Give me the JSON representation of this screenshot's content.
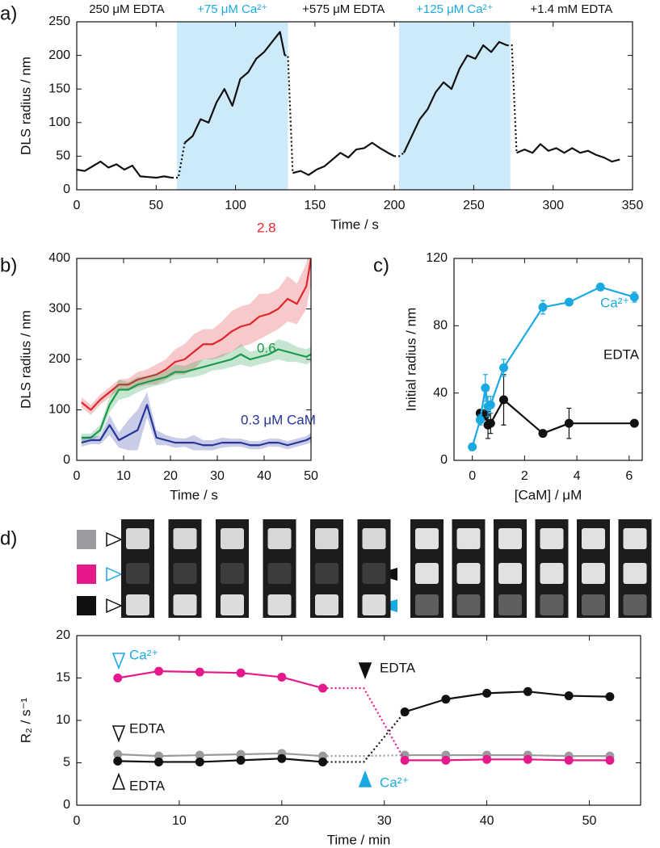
{
  "chart_data": [
    {
      "type": "line",
      "panel_label": "a)",
      "x_label": "Time / s",
      "y_label": "DLS radius / nm",
      "xlim": [
        0,
        350
      ],
      "ylim": [
        0,
        250
      ],
      "xticks": [
        0,
        50,
        100,
        150,
        200,
        250,
        300,
        350
      ],
      "yticks": [
        0,
        50,
        100,
        150,
        200,
        250
      ],
      "shaded_regions": [
        [
          63,
          133
        ],
        [
          203,
          273
        ]
      ],
      "shade_color": "#cdeafa",
      "annotations": [
        {
          "text": "250 μM EDTA",
          "color": "#111111"
        },
        {
          "text": "+75 μM Ca²⁺",
          "color": "#1ba9e1"
        },
        {
          "text": "+575 μM EDTA",
          "color": "#111111"
        },
        {
          "text": "+125 μM Ca²⁺",
          "color": "#1ba9e1"
        },
        {
          "text": "+1.4 mM EDTA",
          "color": "#111111"
        }
      ],
      "series": [
        {
          "color": "#111111",
          "x": [
            0,
            5,
            10,
            15,
            20,
            25,
            30,
            35,
            40,
            45,
            50,
            55,
            60,
            64,
            68,
            73,
            78,
            83,
            88,
            93,
            98,
            103,
            108,
            113,
            118,
            123,
            128,
            131,
            133,
            136,
            141,
            146,
            151,
            156,
            161,
            166,
            171,
            176,
            181,
            186,
            191,
            196,
            200,
            203,
            206,
            211,
            216,
            221,
            226,
            231,
            236,
            241,
            246,
            251,
            256,
            261,
            266,
            271,
            274,
            277,
            282,
            287,
            292,
            297,
            302,
            307,
            312,
            317,
            322,
            327,
            332,
            337,
            342
          ],
          "values": [
            30,
            28,
            35,
            42,
            33,
            38,
            30,
            36,
            20,
            19,
            18,
            20,
            18,
            null,
            70,
            80,
            105,
            100,
            130,
            150,
            125,
            165,
            175,
            195,
            205,
            220,
            235,
            200,
            null,
            25,
            28,
            22,
            30,
            35,
            45,
            55,
            48,
            60,
            62,
            70,
            62,
            55,
            50,
            null,
            55,
            80,
            105,
            120,
            145,
            160,
            150,
            180,
            200,
            195,
            215,
            205,
            220,
            215,
            null,
            55,
            60,
            55,
            68,
            58,
            62,
            55,
            62,
            55,
            58,
            52,
            48,
            42,
            45
          ]
        }
      ]
    },
    {
      "type": "line",
      "panel_label": "b)",
      "x_label": "Time / s",
      "y_label": "DLS radius / nm",
      "band": true,
      "xlim": [
        0,
        50
      ],
      "ylim": [
        0,
        400
      ],
      "xticks": [
        0,
        10,
        20,
        30,
        40,
        50
      ],
      "yticks": [
        0,
        100,
        200,
        300,
        400
      ],
      "series": [
        {
          "name": "2.8",
          "color": "#e0262c",
          "x": [
            1,
            3,
            5,
            7,
            9,
            11,
            13,
            15,
            17,
            19,
            21,
            23,
            25,
            27,
            29,
            31,
            33,
            35,
            37,
            39,
            41,
            43,
            45,
            47,
            49,
            50
          ],
          "values": [
            115,
            100,
            120,
            135,
            150,
            150,
            160,
            165,
            170,
            180,
            195,
            200,
            215,
            230,
            230,
            240,
            255,
            265,
            270,
            285,
            290,
            300,
            320,
            310,
            345,
            400
          ],
          "errors": [
            10,
            10,
            10,
            10,
            10,
            12,
            15,
            15,
            20,
            20,
            25,
            30,
            35,
            30,
            30,
            35,
            40,
            40,
            40,
            45,
            40,
            40,
            45,
            40,
            45,
            50
          ]
        },
        {
          "name": "0.6",
          "color": "#1a9a48",
          "x": [
            1,
            3,
            5,
            7,
            9,
            11,
            13,
            15,
            17,
            19,
            21,
            23,
            25,
            27,
            29,
            31,
            33,
            35,
            37,
            39,
            41,
            43,
            45,
            47,
            49,
            50
          ],
          "values": [
            45,
            45,
            60,
            110,
            140,
            140,
            150,
            155,
            160,
            165,
            175,
            175,
            180,
            185,
            190,
            195,
            200,
            210,
            200,
            205,
            210,
            220,
            215,
            210,
            205,
            210
          ],
          "errors": [
            8,
            8,
            10,
            15,
            20,
            15,
            15,
            12,
            12,
            12,
            15,
            12,
            15,
            15,
            12,
            15,
            15,
            20,
            15,
            15,
            15,
            20,
            20,
            15,
            15,
            15
          ]
        },
        {
          "name": "0.3 μM CaM",
          "color": "#27359a",
          "x": [
            1,
            3,
            5,
            7,
            9,
            11,
            13,
            15,
            17,
            19,
            21,
            23,
            25,
            27,
            29,
            31,
            33,
            35,
            37,
            39,
            41,
            43,
            45,
            47,
            49,
            50
          ],
          "values": [
            35,
            40,
            40,
            70,
            40,
            50,
            60,
            110,
            45,
            40,
            35,
            35,
            35,
            30,
            30,
            35,
            35,
            35,
            30,
            30,
            35,
            35,
            30,
            35,
            40,
            45
          ],
          "errors": [
            8,
            8,
            8,
            20,
            15,
            30,
            40,
            25,
            15,
            10,
            10,
            8,
            15,
            10,
            10,
            10,
            8,
            8,
            8,
            8,
            8,
            8,
            8,
            8,
            8,
            10
          ]
        }
      ]
    },
    {
      "type": "line",
      "panel_label": "c)",
      "x_label": "[CaM] / μM",
      "y_label": "Initial radius / nm",
      "markers": true,
      "xlim": [
        -0.7,
        6.5
      ],
      "ylim": [
        0,
        120
      ],
      "xticks": [
        0,
        2,
        4,
        6
      ],
      "yticks": [
        0,
        40,
        80,
        120
      ],
      "series": [
        {
          "name": "EDTA",
          "color": "#111111",
          "x": [
            0.3,
            0.5,
            0.6,
            0.7,
            1.2,
            2.7,
            3.7,
            6.2
          ],
          "values": [
            28,
            27,
            21,
            22,
            36,
            16,
            22,
            22
          ],
          "errors": [
            2,
            3,
            8,
            6,
            15,
            2,
            9,
            1
          ]
        },
        {
          "name": "Ca²⁺",
          "color": "#1ba9e1",
          "x": [
            0,
            0.3,
            0.5,
            0.6,
            0.7,
            1.2,
            2.7,
            3.7,
            4.9,
            6.2
          ],
          "values": [
            8,
            24,
            43,
            32,
            33,
            55,
            91,
            94,
            103,
            97
          ],
          "errors": [
            0,
            3,
            8,
            6,
            5,
            5,
            4,
            2,
            2,
            3
          ]
        }
      ]
    },
    {
      "type": "line",
      "panel_label": "d)",
      "x_label": "Time / min",
      "y_label": "R₂ / s⁻¹",
      "markers": true,
      "xlim": [
        0,
        55
      ],
      "ylim": [
        0,
        20
      ],
      "xticks": [
        0,
        10,
        20,
        30,
        40,
        50
      ],
      "yticks": [
        0,
        5,
        10,
        15,
        20
      ],
      "annotations": [
        {
          "text": "Ca²⁺",
          "color": "#1ba9e1"
        },
        {
          "text": "EDTA",
          "color": "#111111"
        },
        {
          "text": "EDTA",
          "color": "#111111"
        },
        {
          "text": "EDTA",
          "color": "#111111"
        },
        {
          "text": "Ca²⁺",
          "color": "#1ba9e1"
        }
      ],
      "series": [
        {
          "color": "#9a9a9f",
          "x": [
            4,
            8,
            12,
            16,
            20,
            24,
            28,
            32,
            36,
            40,
            44,
            48,
            52
          ],
          "values": [
            6,
            5.8,
            5.9,
            6,
            6.1,
            5.8,
            null,
            5.9,
            5.9,
            5.9,
            5.9,
            5.8,
            5.8
          ]
        },
        {
          "color": "#e6198c",
          "x": [
            4,
            8,
            12,
            16,
            20,
            24,
            28,
            32,
            36,
            40,
            44,
            48,
            52
          ],
          "values": [
            15,
            15.8,
            15.7,
            15.6,
            15.1,
            13.8,
            null,
            5.3,
            5.3,
            5.4,
            5.4,
            5.3,
            5.3
          ]
        },
        {
          "color": "#111111",
          "x": [
            4,
            8,
            12,
            16,
            20,
            24,
            28,
            32,
            36,
            40,
            44,
            48,
            52
          ],
          "values": [
            5.2,
            5.1,
            5.1,
            5.3,
            5.5,
            5.1,
            null,
            11,
            12.5,
            13.2,
            13.4,
            12.9,
            12.8
          ]
        }
      ]
    }
  ]
}
